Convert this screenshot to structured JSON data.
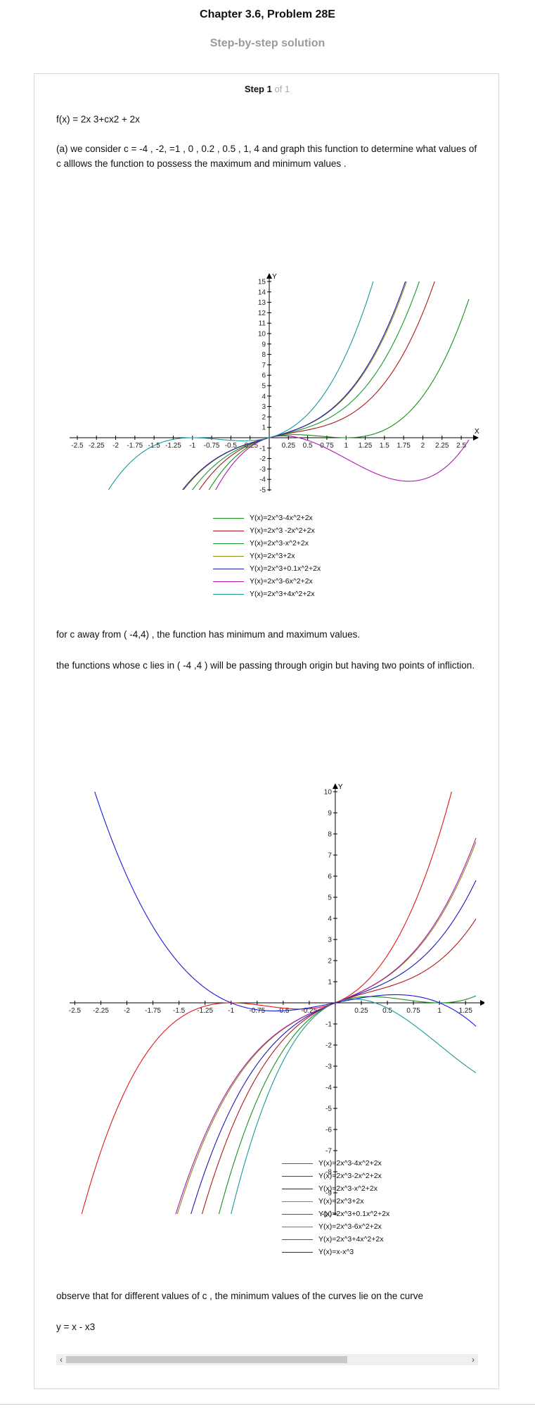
{
  "header": {
    "title": "Chapter 3.6, Problem 28E",
    "subtitle": "Step-by-step solution"
  },
  "step": {
    "label": "Step 1",
    "of": "of 1"
  },
  "text": {
    "function_def": "f(x) = 2x 3+cx2 + 2x",
    "part_a": "(a) we consider c = -4 , -2, =1 , 0 , 0.2 , 0.5 , 1, 4 and graph this function to determine what values of c alllows the function to possess the maximum and minimum values .",
    "away": "for  c away from ( -4,4) , the function has minimum and maximum values.",
    "inside": "the functions whose c lies in ( -4 ,4 ) will be passing through origin but having two points of infliction.",
    "observe": "observe that for different values of c , the minimum values of the curves lie on the curve",
    "final": "y = x - x3"
  },
  "chart_data": [
    {
      "type": "line",
      "xlabel": "X",
      "ylabel": "Y",
      "xlim": [
        -2.6,
        2.6
      ],
      "ylim": [
        -5,
        15
      ],
      "xticks": [
        "-2.5",
        "-2.25",
        "-2",
        "-1.75",
        "-1.5",
        "-1.25",
        "-1",
        "-0.75",
        "-0.5",
        "-0.25",
        "0",
        "0.25",
        "0.5",
        "0.75",
        "1",
        "1.25",
        "1.5",
        "1.75",
        "2",
        "2.25",
        "2.5"
      ],
      "yticks": [
        "15",
        "14",
        "13",
        "12",
        "11",
        "10",
        "9",
        "8",
        "7",
        "6",
        "5",
        "4",
        "3",
        "2",
        "1",
        "-1",
        "-2",
        "-3",
        "-4",
        "-5"
      ],
      "series": [
        {
          "name": "Y(x)=2x^3-4x^2+2x",
          "c": -4,
          "color": "#1a8f1a"
        },
        {
          "name": "Y(x)=2x^3 -2x^2+2x",
          "c": -2,
          "color": "#b01818"
        },
        {
          "name": "Y(x)=2x^3-x^2+2x",
          "c": -1,
          "color": "#1a9a2a"
        },
        {
          "name": "Y(x)=2x^3+2x",
          "c": 0,
          "color": "#8c8c1a"
        },
        {
          "name": "Y(x)=2x^3+0.1x^2+2x",
          "c": 0.1,
          "color": "#1a1ab0"
        },
        {
          "name": "Y(x)=2x^3-6x^2+2x",
          "c": -6,
          "color": "#b018b0"
        },
        {
          "name": "Y(x)=2x^3+4x^2+2x",
          "c": 4,
          "color": "#1a9a9a"
        }
      ]
    },
    {
      "type": "line",
      "xlabel": "",
      "ylabel": "Y",
      "xlim": [
        -2.55,
        1.35
      ],
      "ylim": [
        -10,
        10
      ],
      "xticks": [
        "-2.5",
        "-2.25",
        "-2",
        "-1.75",
        "-1.5",
        "-1.25",
        "-1",
        "-0.75",
        "-0.5",
        "-0.25",
        "0",
        "0.25",
        "0.5",
        "0.75",
        "1",
        "1.25"
      ],
      "yticks": [
        "10",
        "9",
        "8",
        "7",
        "6",
        "5",
        "4",
        "3",
        "2",
        "1",
        "-1",
        "-2",
        "-3",
        "-4",
        "-5",
        "-6",
        "-7",
        "-8",
        "-9",
        "-10"
      ],
      "series": [
        {
          "name": "Y(x)=2x^3-4x^2+2x",
          "c": -4,
          "color": "#1a8f1a"
        },
        {
          "name": "Y(x)=2x^3-2x^2+2x",
          "c": -2,
          "color": "#b01818"
        },
        {
          "name": "Y(x)=2x^3-x^2+2x",
          "c": -1,
          "color": "#1a1ab0"
        },
        {
          "name": "Y(x)=2x^3+2x",
          "c": 0,
          "color": "#8c8c1a"
        },
        {
          "name": "Y(x)=2x^3+0.1x^2+2x",
          "c": 0.1,
          "color": "#b018b0"
        },
        {
          "name": "Y(x)=2x^3-6x^2+2x",
          "c": -6,
          "color": "#1a9a9a"
        },
        {
          "name": "Y(x)=2x^3+4x^2+2x",
          "c": 4,
          "color": "#e01818"
        },
        {
          "name": "Y(x)=x-x^3",
          "c": null,
          "color": "#1a1ae0"
        }
      ]
    }
  ],
  "scrollbar": {
    "left_arrow": "‹",
    "right_arrow": "›"
  }
}
